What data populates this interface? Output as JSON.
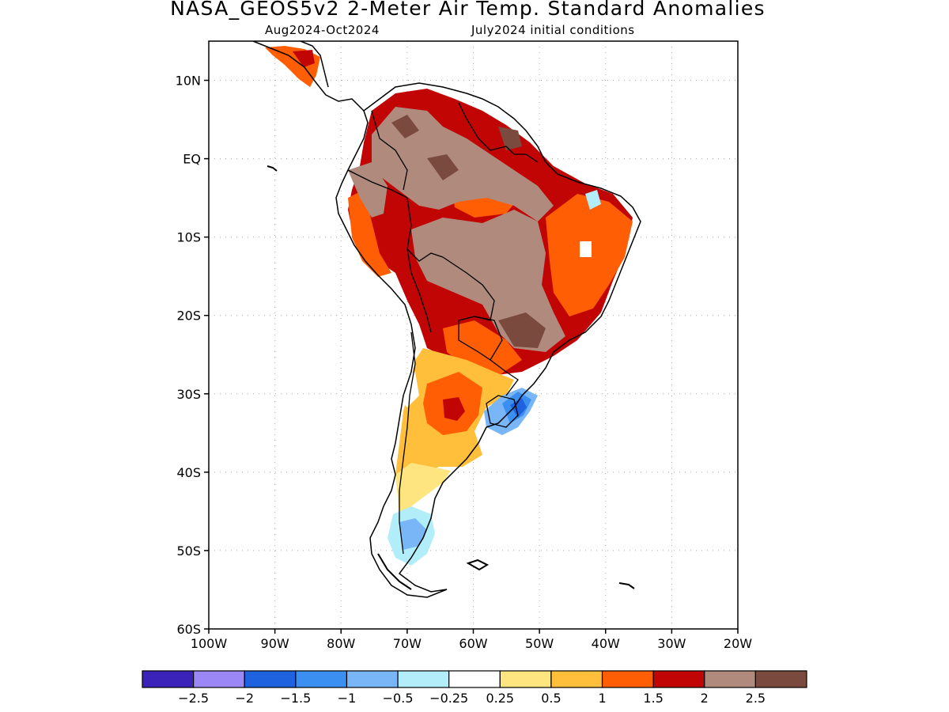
{
  "title": "NASA_GEOS5v2 2-Meter Air Temp. Standard Anomalies",
  "subtitle_period": "Aug2024-Oct2024",
  "subtitle_init": "July2024 initial conditions",
  "map": {
    "lon_range": [
      -100,
      -20
    ],
    "lat_range": [
      -60,
      15
    ],
    "lat_ticks": [
      {
        "value": 10,
        "label": "10N"
      },
      {
        "value": 0,
        "label": "EQ"
      },
      {
        "value": -10,
        "label": "10S"
      },
      {
        "value": -20,
        "label": "20S"
      },
      {
        "value": -30,
        "label": "30S"
      },
      {
        "value": -40,
        "label": "40S"
      },
      {
        "value": -50,
        "label": "50S"
      },
      {
        "value": -60,
        "label": "60S"
      }
    ],
    "lon_ticks": [
      {
        "value": -100,
        "label": "100W"
      },
      {
        "value": -90,
        "label": "90W"
      },
      {
        "value": -80,
        "label": "80W"
      },
      {
        "value": -70,
        "label": "70W"
      },
      {
        "value": -60,
        "label": "60W"
      },
      {
        "value": -50,
        "label": "50W"
      },
      {
        "value": -40,
        "label": "40W"
      },
      {
        "value": -30,
        "label": "30W"
      },
      {
        "value": -20,
        "label": "20W"
      }
    ],
    "grid": "dotted"
  },
  "colorbar": {
    "colors": [
      "#3b22b9",
      "#9b87f5",
      "#1f62e0",
      "#3b8ff0",
      "#78b6f7",
      "#b2eefa",
      "#ffffff",
      "#ffe57f",
      "#ffbf3a",
      "#ff5e05",
      "#c10505",
      "#b08a7d",
      "#7a4a3e"
    ],
    "labels": [
      "-2.5",
      "-2",
      "-1.5",
      "-1",
      "-0.5",
      "-0.25",
      "0.25",
      "0.5",
      "1",
      "1.5",
      "2",
      "2.5"
    ]
  },
  "regions": [
    {
      "name": "central-brazil-anomaly",
      "color": "#b08a7d",
      "lon": -55,
      "lat": -13
    },
    {
      "name": "northern-south-america-anomaly",
      "color": "#b08a7d",
      "lon": -65,
      "lat": 3
    },
    {
      "name": "brazil-heat-anomaly",
      "color": "#c10505",
      "lon": -58,
      "lat": -8
    },
    {
      "name": "northeast-brazil-anomaly",
      "color": "#ff5e05",
      "lon": -42,
      "lat": -8
    },
    {
      "name": "argentina-anomaly",
      "color": "#ffbf3a",
      "lon": -64,
      "lat": -32
    },
    {
      "name": "argentina-core-anomaly",
      "color": "#c10505",
      "lon": -63,
      "lat": -31
    },
    {
      "name": "uruguay-cold-anomaly",
      "color": "#3b8ff0",
      "lon": -54,
      "lat": -31
    },
    {
      "name": "patagonia-cold-anomaly",
      "color": "#78b6f7",
      "lon": -70,
      "lat": -47
    }
  ]
}
